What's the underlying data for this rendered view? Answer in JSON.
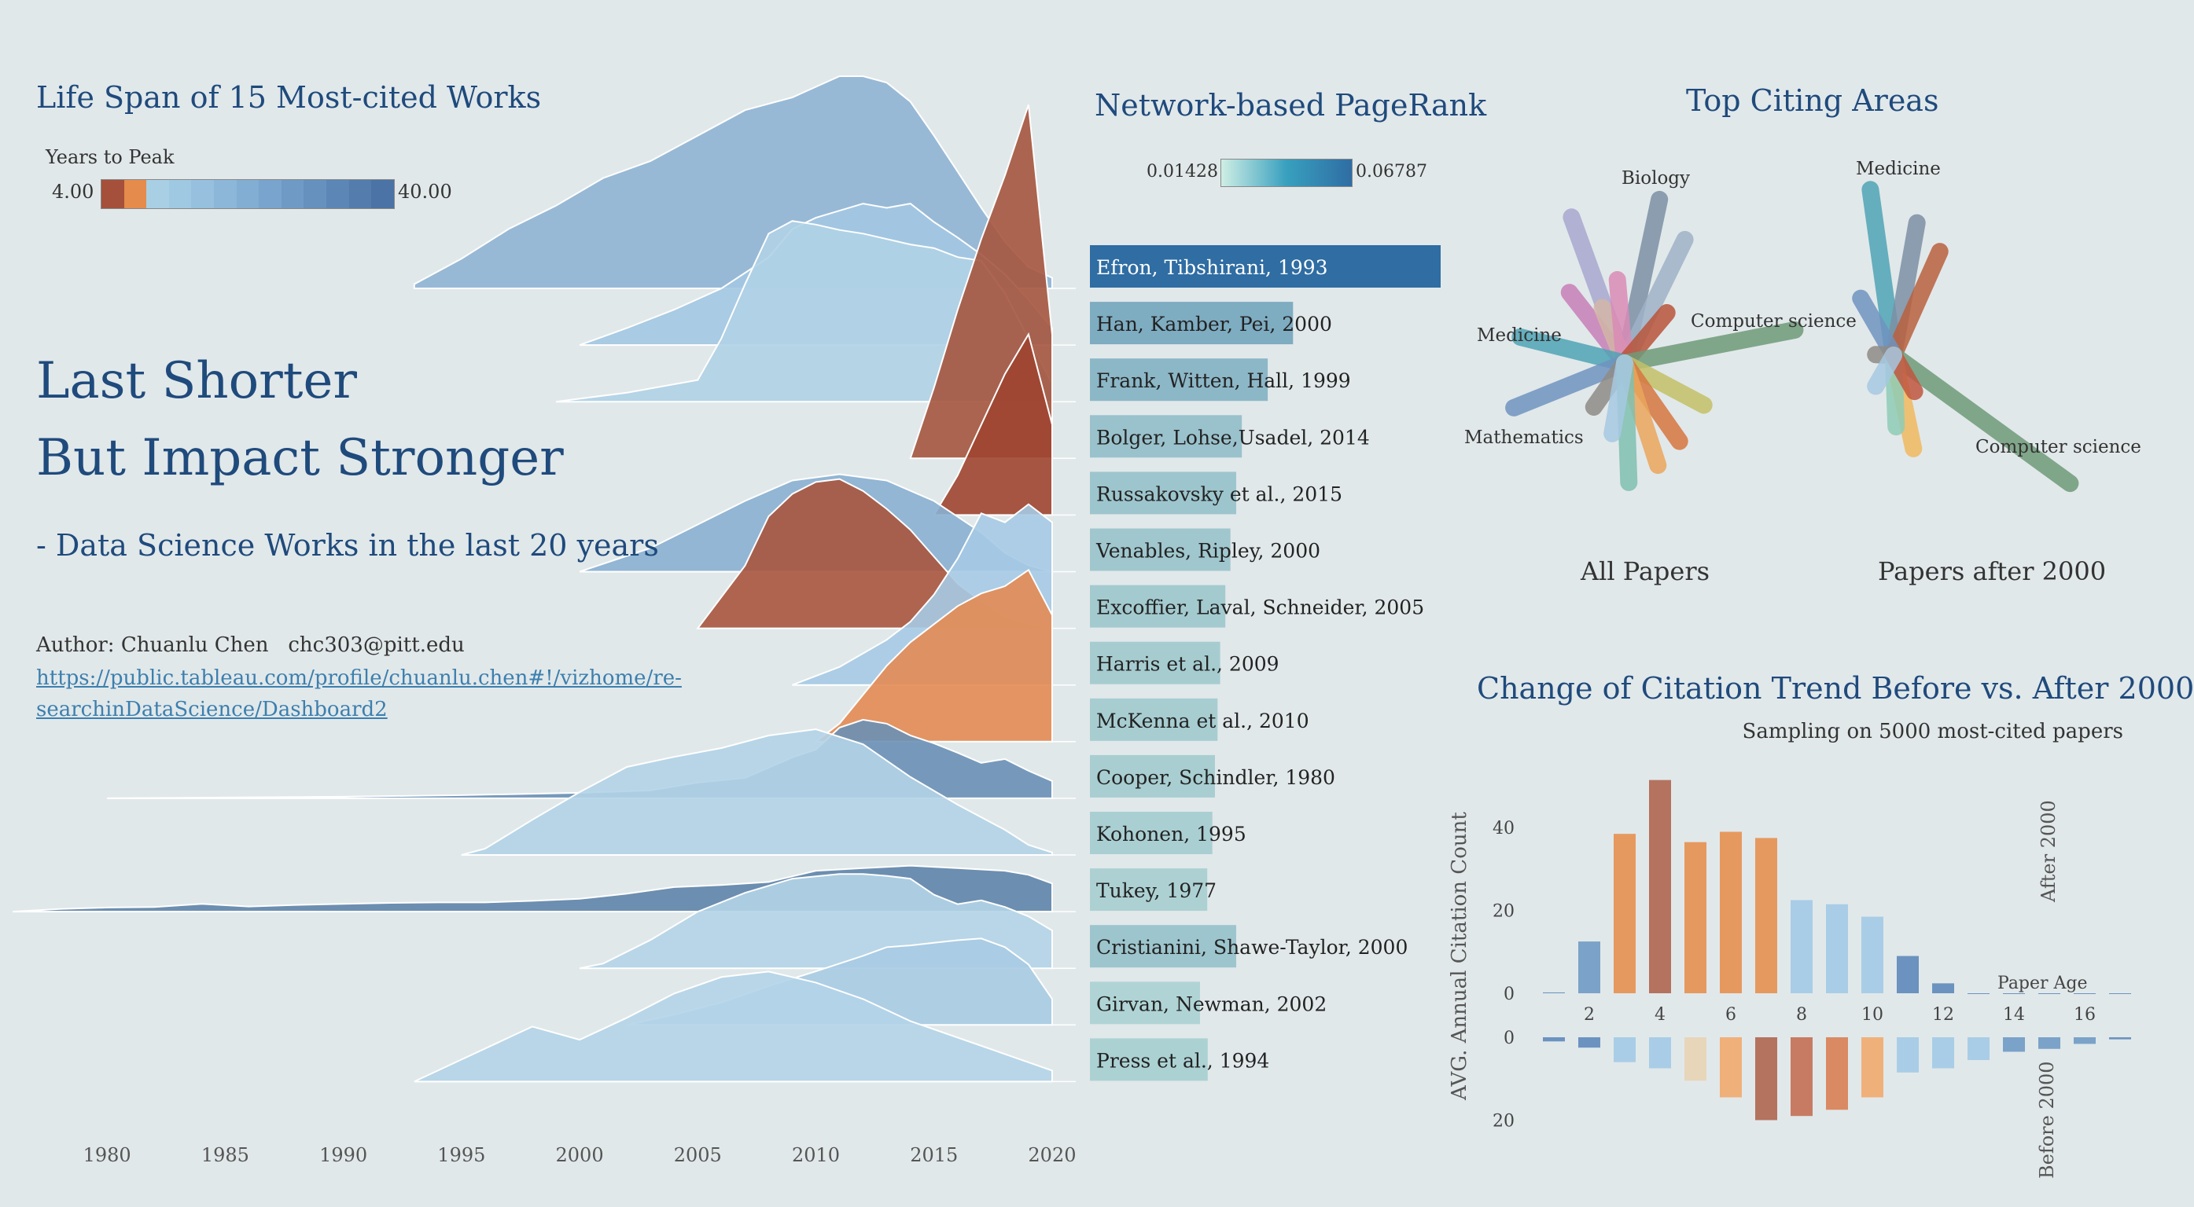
{
  "lifespan": {
    "title": "Life Span of 15 Most-cited Works",
    "legend_title": "Years to Peak",
    "legend_min": "4.00",
    "legend_max": "40.00",
    "legend_colors": [
      "#a4503a",
      "#e58b4b",
      "#a8cfe4",
      "#9fc8e2",
      "#96c0de",
      "#8cb7d8",
      "#83aed3",
      "#79a4cd",
      "#6f9ac6",
      "#6690be",
      "#5c86b6",
      "#547dad",
      "#4b73a5"
    ],
    "x_ticks": [
      "1980",
      "1985",
      "1990",
      "1995",
      "2000",
      "2005",
      "2010",
      "2015",
      "2020"
    ],
    "x_tick_years": [
      1980,
      1985,
      1990,
      1995,
      2000,
      2005,
      2010,
      2015,
      2020
    ]
  },
  "headline": {
    "line1": "Last Shorter",
    "line2": "But Impact Stronger",
    "subtitle": "- Data Science Works in the last 20 years",
    "author": "Author: Chuanlu Chen   chc303@pitt.edu",
    "link1": "https://public.tableau.com/profile/chuanlu.chen#!/vizhome/re-",
    "link2": "searchinDataScience/Dashboard2"
  },
  "pagerank": {
    "title": "Network-based PageRank",
    "legend_min": "0.01428",
    "legend_max": "0.06787"
  },
  "top_citing": {
    "title": "Top Citing Areas",
    "left_label": "All Papers",
    "right_label": "Papers after 2000",
    "left_areas": [
      "Biology",
      "Computer science",
      "Medicine",
      "Mathematics"
    ],
    "right_areas": [
      "Medicine",
      "Computer science"
    ]
  },
  "trend": {
    "title": "Change of Citation Trend Before vs. After 2000",
    "subtitle": "Sampling on 5000 most-cited papers",
    "ylabel": "AVG. Annual Citation Count",
    "after_label": "After 2000",
    "before_label": "Before 2000",
    "xlabel": "Paper Age",
    "x_ticks": [
      "2",
      "4",
      "6",
      "8",
      "10",
      "12",
      "14",
      "16"
    ],
    "up_ticks": [
      "40",
      "20",
      "0"
    ],
    "down_ticks": [
      "0",
      "20"
    ]
  },
  "chart_data": [
    {
      "type": "area",
      "title": "Life Span of 15 Most-cited Works",
      "xlim": [
        1976,
        2021
      ],
      "series": [
        {
          "name": "Efron, Tibshirani, 1993",
          "color": "#8fb4d4",
          "x": [
            1993,
            1995,
            1997,
            1999,
            2001,
            2003,
            2005,
            2007,
            2009,
            2010,
            2011,
            2012,
            2013,
            2014,
            2015,
            2016,
            2017,
            2018,
            2019,
            2020
          ],
          "values": [
            0.02,
            0.14,
            0.28,
            0.39,
            0.52,
            0.6,
            0.72,
            0.84,
            0.9,
            0.95,
            1.0,
            1.0,
            0.97,
            0.88,
            0.72,
            0.55,
            0.38,
            0.22,
            0.1,
            0.05
          ]
        },
        {
          "name": "Han, Kamber, Pei, 2000",
          "color": "#a3c8e2",
          "x": [
            2000,
            2002,
            2004,
            2006,
            2008,
            2009,
            2010,
            2011,
            2012,
            2013,
            2014,
            2015,
            2016,
            2017,
            2018,
            2019,
            2020
          ],
          "values": [
            0.0,
            0.12,
            0.25,
            0.4,
            0.62,
            0.82,
            0.9,
            0.95,
            1.0,
            0.97,
            1.0,
            0.87,
            0.76,
            0.64,
            0.5,
            0.32,
            0.12
          ]
        },
        {
          "name": "Frank, Witten, Hall, 1999",
          "color": "#b0d2e6",
          "x": [
            1999,
            2002,
            2005,
            2006,
            2007,
            2008,
            2009,
            2010,
            2011,
            2012,
            2013,
            2014,
            2015,
            2016,
            2017,
            2018,
            2019,
            2020
          ],
          "values": [
            0.0,
            0.05,
            0.12,
            0.35,
            0.65,
            0.93,
            1.0,
            0.98,
            0.95,
            0.93,
            0.9,
            0.87,
            0.85,
            0.8,
            0.78,
            0.6,
            0.35,
            0.1
          ]
        },
        {
          "name": "Bolger, Lohse,Usadel, 2014",
          "color": "#a5553e",
          "x": [
            2014,
            2015,
            2016,
            2017,
            2018,
            2019,
            2020
          ],
          "values": [
            0.0,
            0.2,
            0.42,
            0.62,
            0.8,
            1.0,
            0.35
          ]
        },
        {
          "name": "Russakovsky et al., 2015",
          "color": "#9e4530",
          "x": [
            2015,
            2016,
            2017,
            2018,
            2019,
            2020
          ],
          "values": [
            0.0,
            0.22,
            0.5,
            0.78,
            1.0,
            0.5
          ]
        },
        {
          "name": "Venables, Ripley, 2000",
          "color": "#8ab0d2",
          "x": [
            2000,
            2003,
            2005,
            2007,
            2009,
            2011,
            2013,
            2015,
            2017,
            2018,
            2019,
            2020
          ],
          "values": [
            0.0,
            0.15,
            0.3,
            0.45,
            0.58,
            0.62,
            0.58,
            0.45,
            0.25,
            0.12,
            0.04,
            0.0
          ]
        },
        {
          "name": "Excoffier, Laval, Schneider, 2005",
          "color": "#a9553e",
          "x": [
            2005,
            2007,
            2008,
            2009,
            2010,
            2011,
            2012,
            2013,
            2014,
            2015,
            2016,
            2017,
            2018,
            2019,
            2020
          ],
          "values": [
            0.0,
            0.42,
            0.75,
            0.9,
            0.98,
            1.0,
            0.92,
            0.8,
            0.66,
            0.48,
            0.3,
            0.18,
            0.08,
            0.03,
            0.0
          ]
        },
        {
          "name": "Harris et al., 2009",
          "color": "#a6cae4",
          "x": [
            2009,
            2011,
            2013,
            2014,
            2015,
            2016,
            2017,
            2018,
            2019,
            2020
          ],
          "values": [
            0.0,
            0.1,
            0.25,
            0.35,
            0.5,
            0.7,
            0.95,
            0.9,
            1.0,
            0.9
          ]
        },
        {
          "name": "McKenna et al., 2010",
          "color": "#e38b53",
          "x": [
            2010,
            2011,
            2012,
            2013,
            2014,
            2015,
            2016,
            2017,
            2018,
            2019,
            2020
          ],
          "values": [
            0.0,
            0.1,
            0.26,
            0.42,
            0.55,
            0.65,
            0.75,
            0.82,
            0.86,
            0.95,
            0.7
          ]
        },
        {
          "name": "Cooper, Schindler, 1980",
          "color": "#6a90b6",
          "x": [
            1980,
            1985,
            1990,
            1995,
            2000,
            2003,
            2005,
            2007,
            2009,
            2010,
            2011,
            2012,
            2013,
            2014,
            2015,
            2016,
            2017,
            2018,
            2019,
            2020
          ],
          "values": [
            0.0,
            0.01,
            0.02,
            0.04,
            0.07,
            0.1,
            0.2,
            0.26,
            0.52,
            0.62,
            0.9,
            1.0,
            0.95,
            0.8,
            0.7,
            0.58,
            0.45,
            0.5,
            0.35,
            0.22
          ]
        },
        {
          "name": "Kohonen, 1995",
          "color": "#b2d3e7",
          "x": [
            1995,
            1996,
            1998,
            2000,
            2002,
            2004,
            2006,
            2008,
            2010,
            2012,
            2014,
            2016,
            2018,
            2019,
            2020
          ],
          "values": [
            0.0,
            0.05,
            0.28,
            0.5,
            0.7,
            0.78,
            0.85,
            0.95,
            1.0,
            0.88,
            0.62,
            0.4,
            0.2,
            0.08,
            0.02
          ]
        },
        {
          "name": "Tukey, 1977",
          "color": "#5f84aa",
          "x": [
            1976,
            1978,
            1980,
            1982,
            1984,
            1986,
            1988,
            1990,
            1992,
            1994,
            1996,
            1998,
            2000,
            2002,
            2004,
            2006,
            2008,
            2010,
            2012,
            2014,
            2016,
            2018,
            2019,
            2020
          ],
          "values": [
            0.0,
            0.05,
            0.08,
            0.09,
            0.15,
            0.1,
            0.13,
            0.15,
            0.17,
            0.18,
            0.18,
            0.21,
            0.25,
            0.35,
            0.48,
            0.52,
            0.58,
            0.8,
            0.85,
            0.9,
            0.85,
            0.8,
            0.72,
            0.55
          ]
        },
        {
          "name": "Cristianini, Shawe-Taylor, 2000",
          "color": "#b4d4e7",
          "x": [
            2000,
            2001,
            2003,
            2005,
            2007,
            2009,
            2011,
            2012,
            2013,
            2014,
            2015,
            2016,
            2017,
            2018,
            2019,
            2020
          ],
          "values": [
            0.0,
            0.05,
            0.3,
            0.6,
            0.8,
            0.95,
            1.0,
            1.0,
            0.98,
            0.95,
            0.78,
            0.68,
            0.72,
            0.65,
            0.55,
            0.4
          ]
        },
        {
          "name": "Girvan, Newman, 2002",
          "color": "#a9cbe3",
          "x": [
            2002,
            2004,
            2006,
            2008,
            2010,
            2012,
            2013,
            2014,
            2015,
            2016,
            2017,
            2018,
            2019,
            2020
          ],
          "values": [
            0.0,
            0.12,
            0.26,
            0.45,
            0.62,
            0.8,
            0.9,
            0.92,
            0.95,
            0.98,
            1.0,
            0.9,
            0.7,
            0.3
          ]
        },
        {
          "name": "Press et al., 1994",
          "color": "#b4d4e8",
          "x": [
            1993,
            1995,
            1997,
            1998,
            2000,
            2002,
            2004,
            2006,
            2008,
            2010,
            2012,
            2014,
            2016,
            2018,
            2020
          ],
          "values": [
            0.0,
            0.2,
            0.4,
            0.5,
            0.38,
            0.58,
            0.8,
            0.95,
            1.0,
            0.9,
            0.75,
            0.55,
            0.4,
            0.25,
            0.1
          ]
        }
      ]
    },
    {
      "type": "bar",
      "title": "Network-based PageRank",
      "categories": [
        "Efron, Tibshirani, 1993",
        "Han, Kamber, Pei, 2000",
        "Frank, Witten, Hall, 1999",
        "Bolger, Lohse,Usadel, 2014",
        "Russakovsky et al., 2015",
        "Venables, Ripley, 2000",
        "Excoffier,  Laval, Schneider, 2005",
        "Harris  et al., 2009",
        "McKenna et al., 2010",
        "Cooper, Schindler, 1980",
        "Kohonen, 1995",
        "Tukey, 1977",
        "Cristianini, Shawe-Taylor, 2000",
        "Girvan, Newman, 2002",
        "Press et al., 1994"
      ],
      "values": [
        0.06787,
        0.0393,
        0.0344,
        0.0294,
        0.0283,
        0.0272,
        0.0262,
        0.0252,
        0.0247,
        0.0242,
        0.0237,
        0.0227,
        0.0283,
        0.0213,
        0.0228
      ],
      "xlim": [
        0,
        0.06787
      ],
      "color_min": "#c4e4dc",
      "color_max": "#2f6da3"
    },
    {
      "type": "radial-bar",
      "title": "All Papers",
      "spokes": [
        {
          "angle": -20,
          "length": 0.52,
          "color": "#a7a7cf"
        },
        {
          "angle": 12,
          "length": 0.56,
          "color": "#7b8fa5"
        },
        {
          "angle": 26,
          "length": 0.46,
          "color": "#9eb2c7"
        },
        {
          "angle": -38,
          "length": 0.3,
          "color": "#c77fb7"
        },
        {
          "angle": -22,
          "length": 0.2,
          "color": "#d4b6a6"
        },
        {
          "angle": -5,
          "length": 0.28,
          "color": "#d98bb6"
        },
        {
          "angle": 40,
          "length": 0.22,
          "color": "#b9543a"
        },
        {
          "angle": 79,
          "length": 0.58,
          "color": "#6e9a78"
        },
        {
          "angle": -76,
          "length": 0.36,
          "color": "#4fa3b5"
        },
        {
          "angle": -112,
          "length": 0.4,
          "color": "#6f93bf"
        },
        {
          "angle": -145,
          "length": 0.18,
          "color": "#8e8b86"
        },
        {
          "angle": 118,
          "length": 0.3,
          "color": "#c3c066"
        },
        {
          "angle": 145,
          "length": 0.32,
          "color": "#d6763f"
        },
        {
          "angle": 162,
          "length": 0.36,
          "color": "#eaa65c"
        },
        {
          "angle": 178,
          "length": 0.4,
          "color": "#7fbfb0"
        },
        {
          "angle": -170,
          "length": 0.24,
          "color": "#a6c8e2"
        }
      ]
    },
    {
      "type": "radial-bar",
      "title": "Papers after 2000",
      "spokes": [
        {
          "angle": -8,
          "length": 0.56,
          "color": "#4fa3b5"
        },
        {
          "angle": 10,
          "length": 0.45,
          "color": "#7b8fa5"
        },
        {
          "angle": 24,
          "length": 0.38,
          "color": "#b9603d"
        },
        {
          "angle": -30,
          "length": 0.22,
          "color": "#6f93bf"
        },
        {
          "angle": -88,
          "length": 0.06,
          "color": "#8e8b86"
        },
        {
          "angle": 126,
          "length": 0.73,
          "color": "#6e9a78"
        },
        {
          "angle": 168,
          "length": 0.32,
          "color": "#f0b85e"
        },
        {
          "angle": 178,
          "length": 0.24,
          "color": "#8fcbb6"
        },
        {
          "angle": 150,
          "length": 0.14,
          "color": "#c0563f"
        },
        {
          "angle": -150,
          "length": 0.12,
          "color": "#a6c8e2"
        }
      ]
    },
    {
      "type": "bar",
      "title": "Change of Citation Trend Before vs. After 2000",
      "xlabel": "Paper Age",
      "ylabel": "AVG. Annual Citation Count",
      "categories": [
        1,
        2,
        3,
        4,
        5,
        6,
        7,
        8,
        9,
        10,
        11,
        12,
        13,
        14,
        15,
        16,
        17
      ],
      "series": [
        {
          "name": "After 2000",
          "values": [
            0.2,
            12.5,
            38.5,
            51.5,
            36.5,
            39.0,
            37.5,
            22.5,
            21.5,
            18.5,
            9.0,
            2.4,
            0,
            0,
            0,
            0,
            0
          ],
          "colors": [
            "#6c93bf",
            "#7ba2c8",
            "#e6995f",
            "#b4735f",
            "#e6995f",
            "#e6995f",
            "#e6995f",
            "#a9cde6",
            "#a9cde6",
            "#a9cde6",
            "#6c93bf",
            "#6c93bf",
            "#6c93bf",
            "#6c93bf",
            "#6c93bf",
            "#6c93bf",
            "#6c93bf"
          ]
        },
        {
          "name": "Before 2000",
          "values": [
            1.0,
            2.5,
            6.0,
            7.5,
            10.5,
            14.5,
            20.0,
            19.0,
            17.5,
            14.5,
            8.5,
            7.5,
            5.5,
            3.5,
            2.8,
            1.6,
            0.5
          ],
          "colors": [
            "#6c93bf",
            "#6c93bf",
            "#a9cde6",
            "#a9cde6",
            "#e8d6bb",
            "#f0b07a",
            "#b4735f",
            "#c77b63",
            "#d98a63",
            "#f0b07a",
            "#a9cde6",
            "#a9cde6",
            "#a9cde6",
            "#7ba2c8",
            "#7ba2c8",
            "#7ba2c8",
            "#6c93bf"
          ]
        }
      ],
      "ylim_after": [
        0,
        52
      ],
      "ylim_before": [
        0,
        22
      ]
    }
  ]
}
